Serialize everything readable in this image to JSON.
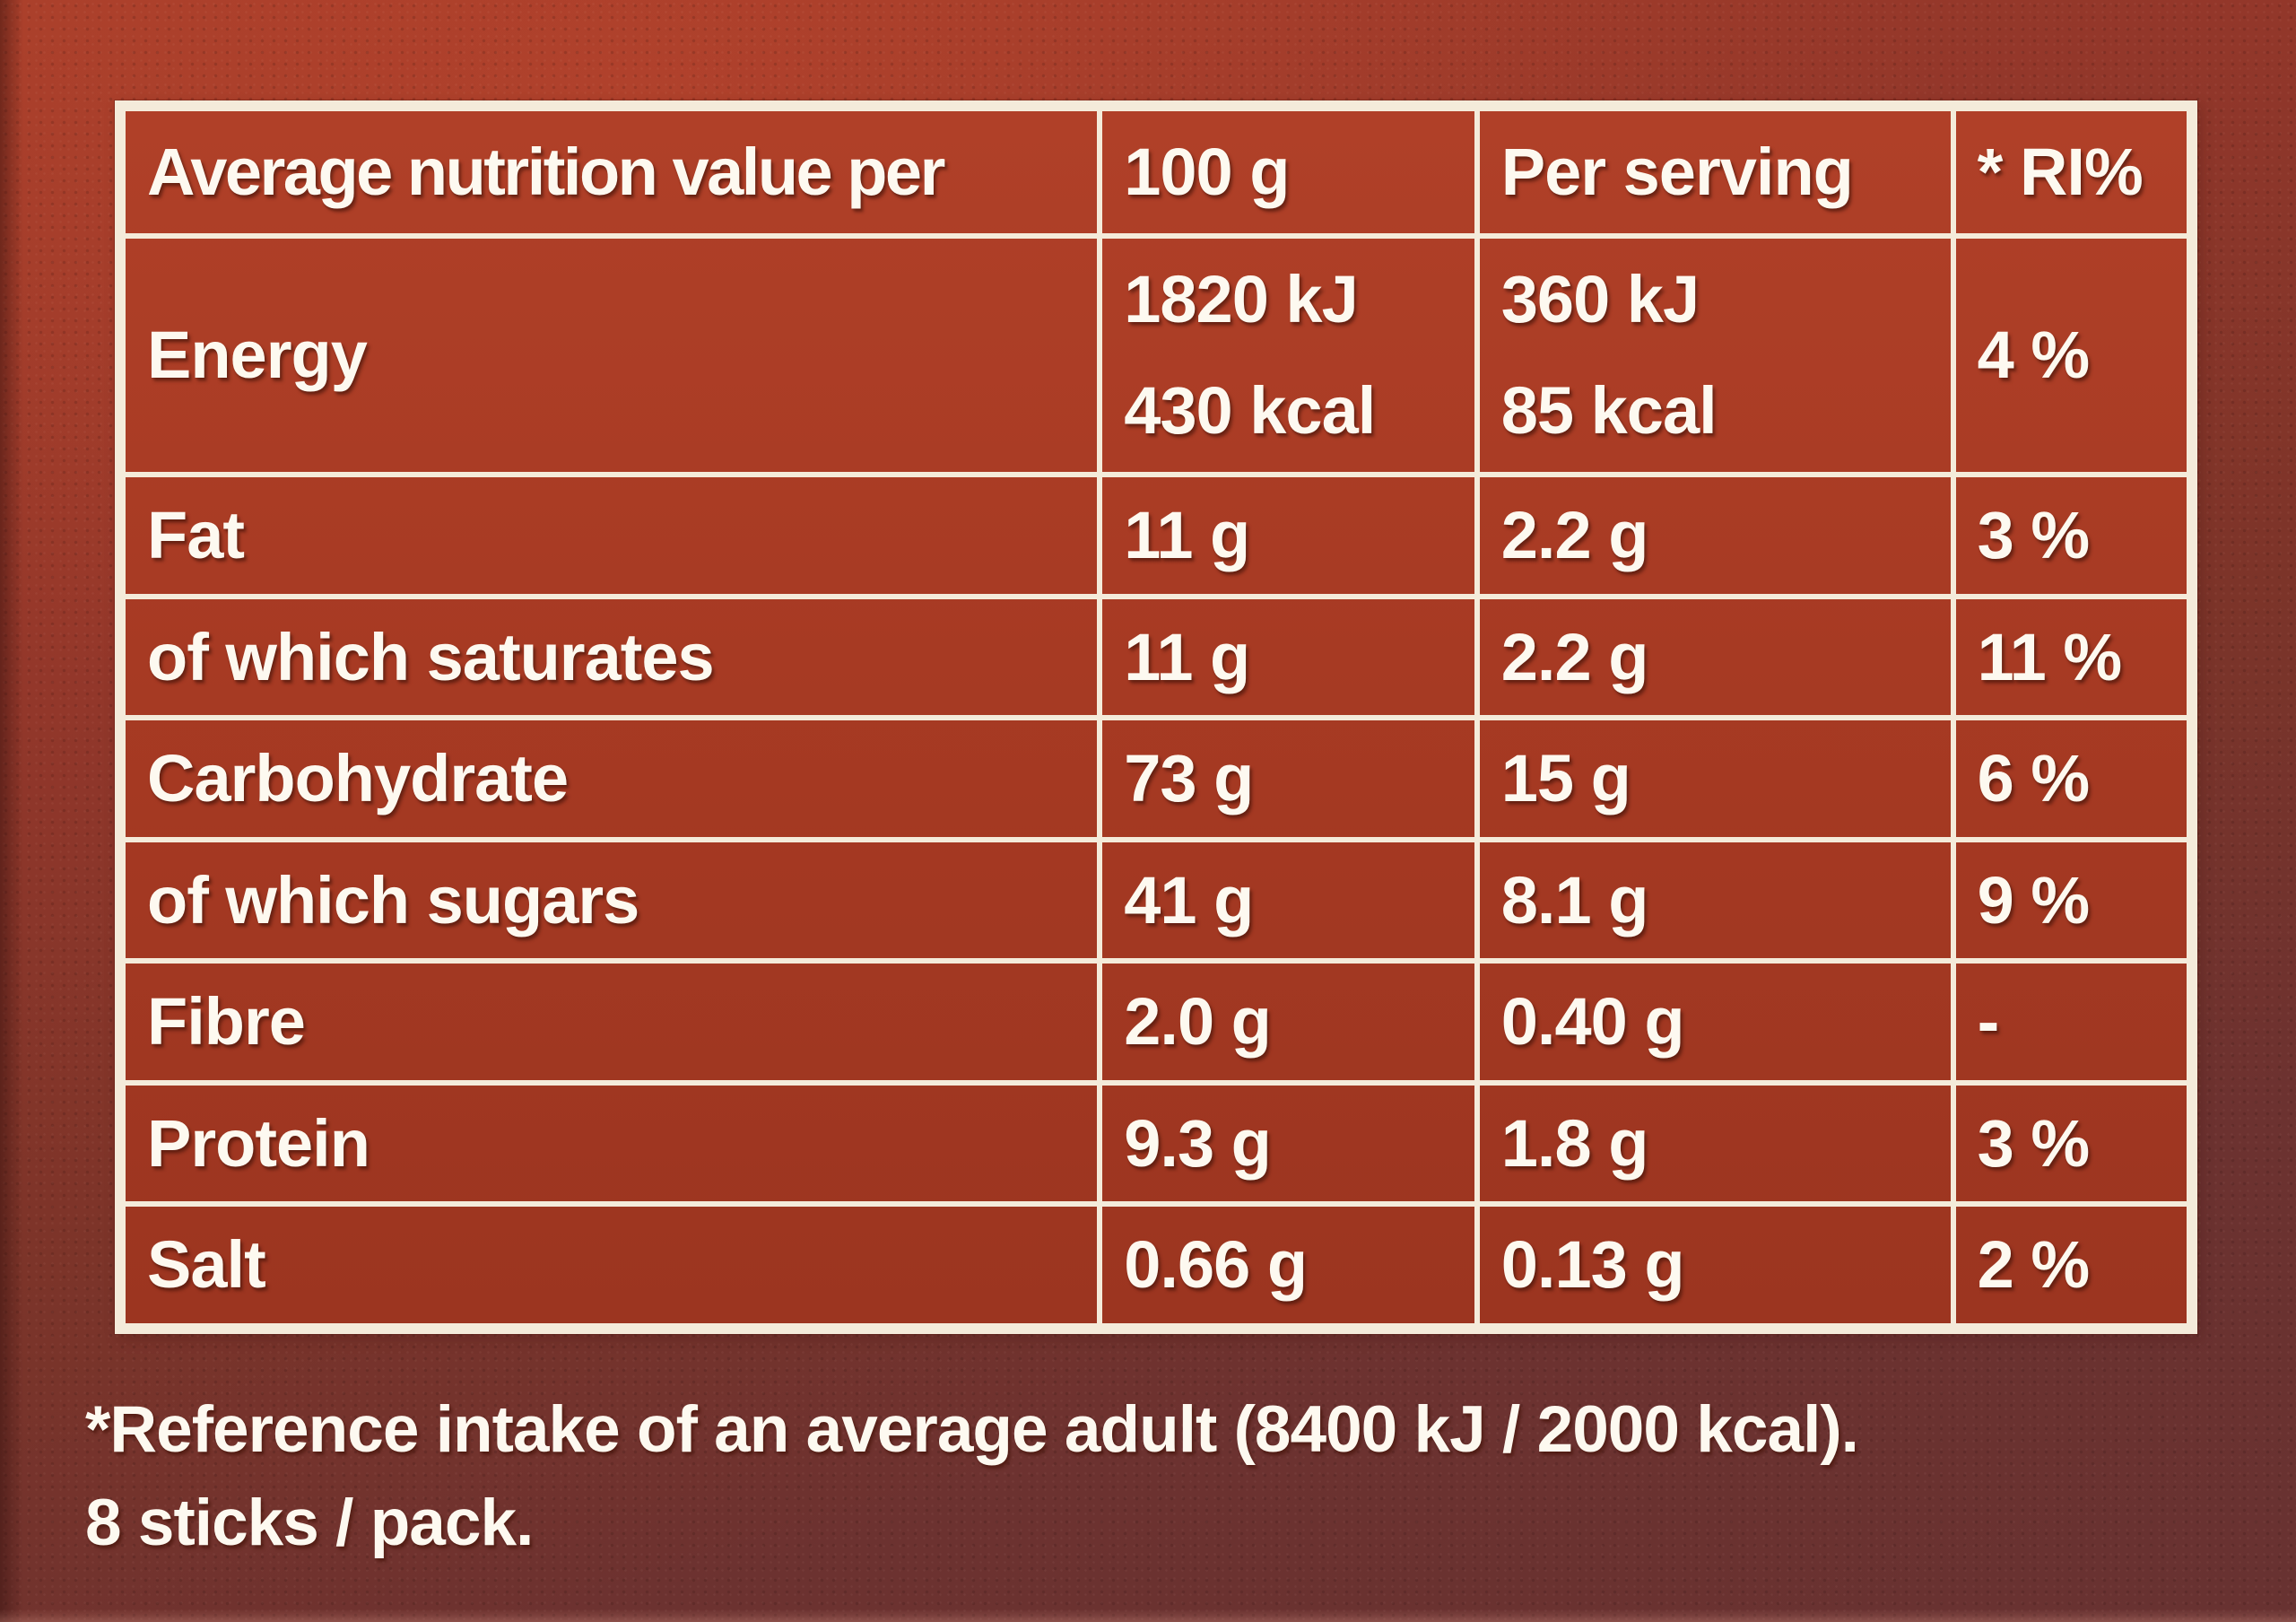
{
  "colors": {
    "cell_red": "#ad3c26",
    "background_top": "#a33d2b",
    "background_bottom": "#683231",
    "border_white": "#f4ebda",
    "text_white": "#fdf9f0"
  },
  "table": {
    "header": {
      "label": "Average nutrition value per",
      "per_100g": "100 g",
      "per_serving": "Per serving",
      "ri_percent": "* RI%"
    },
    "rows": [
      {
        "label": "Energy",
        "per_100g": "1820 kJ",
        "per_100g_line2": "430 kcal",
        "per_serving": "360 kJ",
        "per_serving_line2": "85 kcal",
        "ri": "4 %"
      },
      {
        "label": "Fat",
        "per_100g": "11 g",
        "per_serving": "2.2 g",
        "ri": "3 %"
      },
      {
        "label": "of which saturates",
        "per_100g": "11 g",
        "per_serving": "2.2 g",
        "ri": "11 %"
      },
      {
        "label": "Carbohydrate",
        "per_100g": "73 g",
        "per_serving": "15 g",
        "ri": "6 %"
      },
      {
        "label": "of which sugars",
        "per_100g": "41 g",
        "per_serving": "8.1 g",
        "ri": "9 %"
      },
      {
        "label": "Fibre",
        "per_100g": "2.0 g",
        "per_serving": "0.40 g",
        "ri": "-"
      },
      {
        "label": "Protein",
        "per_100g": "9.3 g",
        "per_serving": "1.8 g",
        "ri": "3 %"
      },
      {
        "label": "Salt",
        "per_100g": "0.66 g",
        "per_serving": "0.13 g",
        "ri": "2 %"
      }
    ]
  },
  "footnote": {
    "line1": "*Reference intake of an average adult (8400 kJ / 2000 kcal).",
    "line2": "8 sticks / pack."
  }
}
